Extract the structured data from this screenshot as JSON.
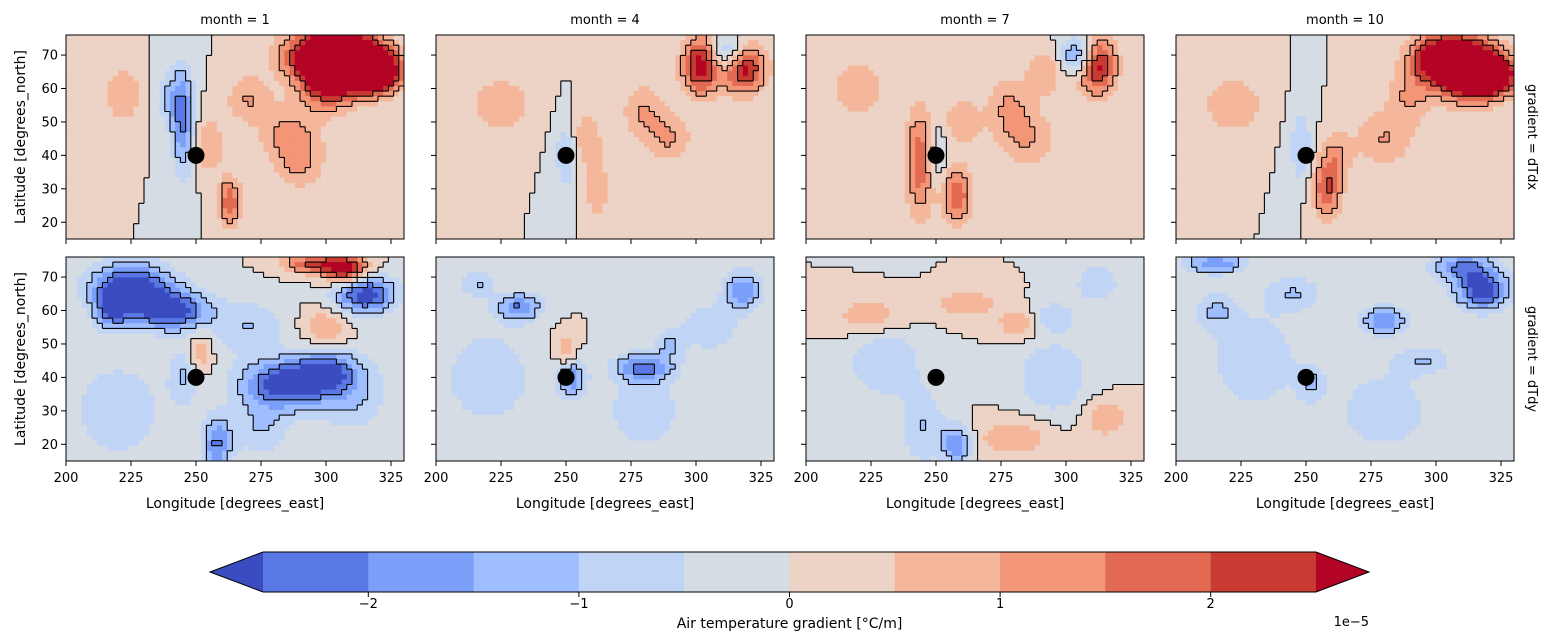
{
  "chart_data": {
    "type": "contourf-facet-grid",
    "column_titles": [
      "month = 1",
      "month = 4",
      "month = 7",
      "month = 10"
    ],
    "row_titles": [
      "gradient = dTdx",
      "gradient = dTdy"
    ],
    "xlabel": "Longitude [degrees_east]",
    "ylabel": "Latitude [degrees_north]",
    "xlim": [
      200,
      330
    ],
    "ylim": [
      15,
      76
    ],
    "xticks": [
      200,
      225,
      250,
      275,
      300,
      325
    ],
    "yticks": [
      20,
      30,
      40,
      50,
      60,
      70
    ],
    "xtick_labels": [
      "200",
      "225",
      "250",
      "275",
      "300",
      "325"
    ],
    "ytick_labels": [
      "20",
      "30",
      "40",
      "50",
      "60",
      "70"
    ],
    "marker_point": {
      "lon": 250,
      "lat": 40
    },
    "colorbar": {
      "label": "Air temperature gradient [°C/m]",
      "multiplier": "1e−5",
      "levels": [
        -2.5,
        -2.0,
        -1.5,
        -1.0,
        -0.5,
        0.0,
        0.5,
        1.0,
        1.5,
        2.0,
        2.5
      ],
      "extend": "both",
      "ticks": [
        -2,
        -1,
        0,
        1,
        2
      ],
      "tick_labels": [
        "−2",
        "−1",
        "0",
        "1",
        "2"
      ],
      "colors": [
        "#3b4cc0",
        "#5a78e4",
        "#7b9ff9",
        "#9ebeff",
        "#c0d4f5",
        "#d6dce4",
        "#ecd3c5",
        "#f5b79b",
        "#f39577",
        "#e26952",
        "#c83b32",
        "#b40426"
      ]
    },
    "panels": [
      {
        "gradient": "dTdx",
        "month": 1,
        "blobs": [
          [
            310,
            68,
            9,
            6,
            5
          ],
          [
            320,
            65,
            6,
            4,
            4
          ],
          [
            300,
            65,
            7,
            7,
            3
          ],
          [
            293,
            70,
            9,
            5,
            2
          ],
          [
            313,
            70,
            8,
            5,
            0
          ],
          [
            245,
            50,
            3,
            11,
            -2
          ],
          [
            240,
            57,
            4,
            6,
            -1
          ],
          [
            263,
            26,
            3,
            5,
            2
          ],
          [
            290,
            38,
            7,
            6,
            1
          ],
          [
            285,
            47,
            8,
            6,
            1
          ],
          [
            255,
            43,
            4,
            6,
            1
          ],
          [
            270,
            57,
            6,
            5,
            1
          ],
          [
            222,
            58,
            5,
            6,
            1
          ],
          [
            220,
            25,
            10,
            8,
            0
          ],
          [
            242,
            25,
            5,
            10,
            0
          ],
          [
            280,
            28,
            8,
            4,
            0
          ]
        ]
      },
      {
        "gradient": "dTdx",
        "month": 4,
        "blobs": [
          [
            302,
            67,
            5,
            6,
            3
          ],
          [
            318,
            66,
            6,
            5,
            3
          ],
          [
            312,
            70,
            5,
            4,
            -2
          ],
          [
            250,
            40,
            3,
            7,
            -1
          ],
          [
            258,
            45,
            4,
            6,
            1
          ],
          [
            262,
            30,
            3,
            6,
            1
          ],
          [
            280,
            53,
            6,
            6,
            1
          ],
          [
            290,
            45,
            6,
            5,
            1
          ],
          [
            225,
            55,
            8,
            6,
            1
          ],
          [
            242,
            35,
            5,
            10,
            0
          ],
          [
            215,
            45,
            12,
            12,
            0
          ]
        ]
      },
      {
        "gradient": "dTdx",
        "month": 7,
        "blobs": [
          [
            312,
            67,
            5,
            6,
            3
          ],
          [
            305,
            70,
            5,
            4,
            -2
          ],
          [
            244,
            38,
            4,
            11,
            2
          ],
          [
            258,
            28,
            4,
            6,
            2
          ],
          [
            250,
            40,
            3,
            7,
            -1
          ],
          [
            278,
            55,
            6,
            6,
            1
          ],
          [
            292,
            65,
            5,
            5,
            1
          ],
          [
            285,
            45,
            8,
            6,
            1
          ],
          [
            220,
            60,
            7,
            6,
            1
          ],
          [
            260,
            50,
            5,
            5,
            1
          ],
          [
            300,
            40,
            8,
            8,
            0
          ],
          [
            230,
            25,
            10,
            8,
            0
          ]
        ]
      },
      {
        "gradient": "dTdx",
        "month": 10,
        "blobs": [
          [
            312,
            66,
            8,
            6,
            5
          ],
          [
            322,
            64,
            6,
            4,
            4
          ],
          [
            300,
            69,
            7,
            5,
            3
          ],
          [
            310,
            72,
            7,
            3,
            0
          ],
          [
            248,
            42,
            3,
            8,
            -1
          ],
          [
            258,
            30,
            4,
            6,
            2
          ],
          [
            262,
            40,
            4,
            5,
            1
          ],
          [
            280,
            45,
            8,
            6,
            1
          ],
          [
            290,
            58,
            6,
            6,
            1
          ],
          [
            222,
            55,
            8,
            6,
            1
          ],
          [
            235,
            30,
            12,
            10,
            0
          ]
        ]
      },
      {
        "gradient": "dTdy",
        "month": 1,
        "blobs": [
          [
            225,
            67,
            11,
            5,
            -3
          ],
          [
            240,
            60,
            10,
            4,
            -3
          ],
          [
            218,
            60,
            5,
            4,
            -2
          ],
          [
            245,
            40,
            4,
            6,
            -1
          ],
          [
            258,
            20,
            4,
            6,
            -2
          ],
          [
            285,
            38,
            12,
            5,
            -3
          ],
          [
            300,
            42,
            8,
            4,
            -2
          ],
          [
            315,
            65,
            8,
            4,
            -3
          ],
          [
            308,
            72,
            6,
            3,
            3
          ],
          [
            295,
            74,
            8,
            2,
            2
          ],
          [
            270,
            55,
            10,
            6,
            -1
          ],
          [
            252,
            47,
            3,
            4,
            1
          ],
          [
            300,
            55,
            6,
            4,
            1
          ],
          [
            220,
            30,
            12,
            10,
            -1
          ],
          [
            275,
            25,
            8,
            6,
            -1
          ],
          [
            310,
            35,
            10,
            8,
            -1
          ]
        ]
      },
      {
        "gradient": "dTdy",
        "month": 4,
        "blobs": [
          [
            232,
            61,
            6,
            3,
            -2
          ],
          [
            216,
            68,
            5,
            3,
            -1
          ],
          [
            318,
            66,
            5,
            4,
            -2
          ],
          [
            252,
            40,
            4,
            4,
            -2
          ],
          [
            280,
            43,
            8,
            3,
            -2
          ],
          [
            290,
            50,
            4,
            3,
            -1
          ],
          [
            250,
            47,
            3,
            4,
            1
          ],
          [
            220,
            40,
            12,
            10,
            -1
          ],
          [
            280,
            30,
            10,
            8,
            -1
          ],
          [
            305,
            55,
            8,
            5,
            -1
          ]
        ]
      },
      {
        "gradient": "dTdy",
        "month": 7,
        "blobs": [
          [
            295,
            58,
            6,
            3,
            -1
          ],
          [
            312,
            68,
            6,
            4,
            -1
          ],
          [
            258,
            20,
            4,
            4,
            -2
          ],
          [
            262,
            62,
            8,
            3,
            1
          ],
          [
            282,
            56,
            6,
            3,
            1
          ],
          [
            225,
            58,
            10,
            4,
            1
          ],
          [
            245,
            25,
            6,
            8,
            -1
          ],
          [
            280,
            22,
            10,
            4,
            1
          ],
          [
            315,
            28,
            6,
            4,
            1
          ],
          [
            230,
            45,
            10,
            8,
            -1
          ],
          [
            295,
            40,
            10,
            8,
            -1
          ]
        ]
      },
      {
        "gradient": "dTdy",
        "month": 10,
        "blobs": [
          [
            318,
            66,
            7,
            4,
            -3
          ],
          [
            310,
            73,
            8,
            3,
            -2
          ],
          [
            215,
            60,
            6,
            4,
            -1
          ],
          [
            252,
            38,
            4,
            4,
            -1
          ],
          [
            295,
            45,
            8,
            3,
            -1
          ],
          [
            280,
            57,
            6,
            3,
            -2
          ],
          [
            215,
            74,
            8,
            2,
            -2
          ],
          [
            245,
            65,
            8,
            4,
            -1
          ],
          [
            230,
            45,
            12,
            10,
            -1
          ],
          [
            280,
            30,
            12,
            8,
            -1
          ]
        ]
      }
    ]
  }
}
